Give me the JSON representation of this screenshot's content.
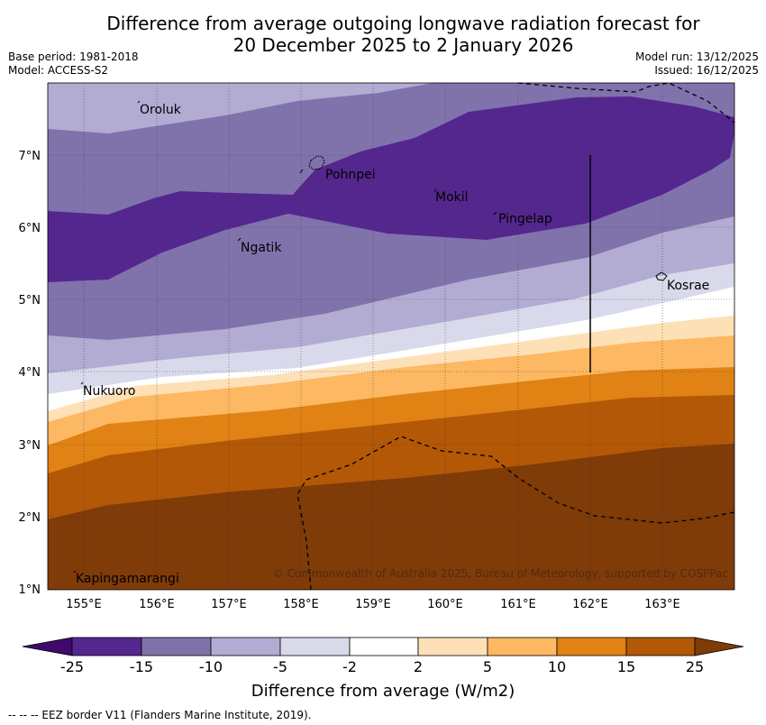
{
  "title": {
    "line1": "Difference from average outgoing longwave radiation forecast for",
    "line2": "20 December 2025 to 2 January 2026"
  },
  "meta": {
    "base_period": "Base period: 1981-2018",
    "model": "Model: ACCESS-S2",
    "model_run": "Model run: 13/12/2025",
    "issued": "Issued: 16/12/2025"
  },
  "map": {
    "lat_ticks": [
      "7°N",
      "6°N",
      "5°N",
      "4°N",
      "3°N",
      "2°N",
      "1°N"
    ],
    "lon_ticks": [
      "155°E",
      "156°E",
      "157°E",
      "158°E",
      "159°E",
      "160°E",
      "161°E",
      "162°E",
      "163°E"
    ],
    "places": [
      "Oroluk",
      "Pohnpei",
      "Mokil",
      "Pingelap",
      "Ngatik",
      "Kosrae",
      "Nukuoro",
      "Kapingamarangi"
    ],
    "copyright": "© Commonwealth of Australia 2025, Bureau of Meteorology, supported by COSPPac"
  },
  "colorbar": {
    "labels": [
      "-25",
      "-15",
      "-10",
      "-5",
      "-2",
      "2",
      "5",
      "10",
      "15",
      "25"
    ],
    "title": "Difference from average (W/m2)",
    "colors": [
      "#3f0a6c",
      "#54278f",
      "#8073ac",
      "#b2abd2",
      "#d8daeb",
      "#ffffff",
      "#fee0b6",
      "#fdb863",
      "#e08214",
      "#b35806",
      "#7f3b08"
    ]
  },
  "footnote": "--  --  -- EEZ border V11 (Flanders Marine Institute, 2019)."
}
